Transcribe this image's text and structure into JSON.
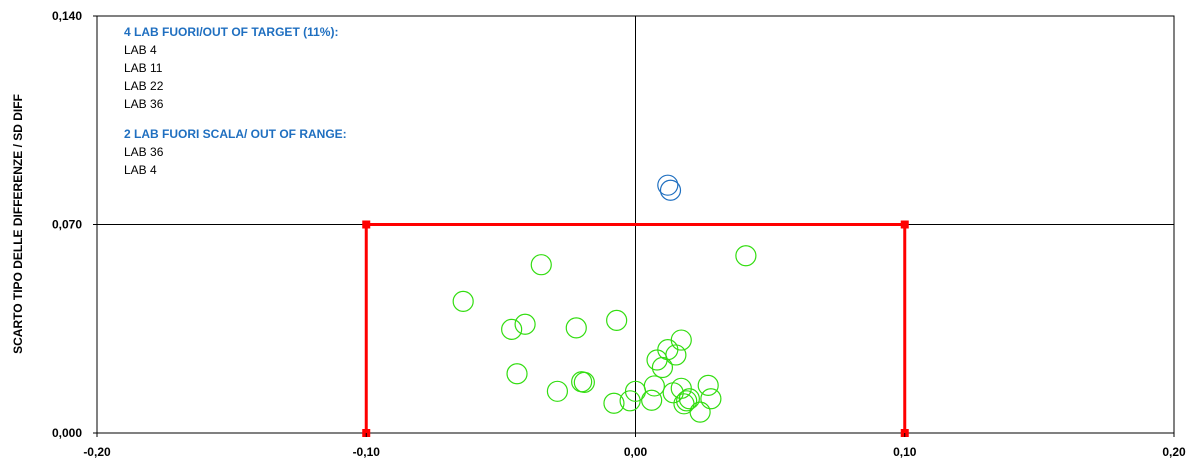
{
  "chart_data": {
    "type": "scatter",
    "ylabel": "SCARTO TIPO DELLE DIFFERENZE / SD DIFF",
    "xlabel": "",
    "xlim": [
      -0.2,
      0.2
    ],
    "ylim": [
      0.0,
      0.14
    ],
    "x_ticks": [
      "-0,20",
      "-0,10",
      "0,00",
      "0,10",
      "0,20"
    ],
    "x_tick_values": [
      -0.2,
      -0.1,
      0.0,
      0.1,
      0.2
    ],
    "y_ticks": [
      "0,000",
      "0,070",
      "0,140"
    ],
    "y_tick_values": [
      0.0,
      0.07,
      0.14
    ],
    "reference_lines": {
      "x": 0.0,
      "y": 0.07
    },
    "target_box": {
      "x": [
        -0.1,
        0.1
      ],
      "y": [
        0.0,
        0.07
      ],
      "color": "#ff0000"
    },
    "series": [
      {
        "color": "#33dd11",
        "points": [
          {
            "x": 0.041,
            "y": 0.0595
          },
          {
            "x": -0.035,
            "y": 0.0565
          },
          {
            "x": -0.064,
            "y": 0.0442
          },
          {
            "x": -0.046,
            "y": 0.0348
          },
          {
            "x": -0.041,
            "y": 0.0365
          },
          {
            "x": -0.022,
            "y": 0.0353
          },
          {
            "x": -0.007,
            "y": 0.0378
          },
          {
            "x": -0.044,
            "y": 0.0199
          },
          {
            "x": -0.029,
            "y": 0.014
          },
          {
            "x": -0.02,
            "y": 0.0172
          },
          {
            "x": -0.019,
            "y": 0.017
          },
          {
            "x": -0.008,
            "y": 0.01
          },
          {
            "x": -0.002,
            "y": 0.0108
          },
          {
            "x": 0.0,
            "y": 0.014
          },
          {
            "x": 0.006,
            "y": 0.011
          },
          {
            "x": 0.007,
            "y": 0.0158
          },
          {
            "x": 0.008,
            "y": 0.0245
          },
          {
            "x": 0.01,
            "y": 0.022
          },
          {
            "x": 0.012,
            "y": 0.028
          },
          {
            "x": 0.014,
            "y": 0.0135
          },
          {
            "x": 0.015,
            "y": 0.0262
          },
          {
            "x": 0.017,
            "y": 0.0312
          },
          {
            "x": 0.017,
            "y": 0.015
          },
          {
            "x": 0.018,
            "y": 0.0098
          },
          {
            "x": 0.019,
            "y": 0.0108
          },
          {
            "x": 0.02,
            "y": 0.0115
          },
          {
            "x": 0.024,
            "y": 0.007
          },
          {
            "x": 0.027,
            "y": 0.016
          },
          {
            "x": 0.028,
            "y": 0.0115
          }
        ]
      },
      {
        "color": "#1f6fc0",
        "points": [
          {
            "x": 0.012,
            "y": 0.0832
          },
          {
            "x": 0.013,
            "y": 0.0815
          }
        ]
      }
    ],
    "annotations": {
      "out_of_target_title": "4 LAB FUORI/OUT OF  TARGET (11%):",
      "out_of_target_labs": [
        "LAB 4",
        "LAB 11",
        "LAB 22",
        "LAB 36"
      ],
      "out_of_range_title": "2 LAB FUORI SCALA/ OUT OF RANGE:",
      "out_of_range_labs": [
        "LAB 36",
        "LAB 4"
      ]
    }
  }
}
